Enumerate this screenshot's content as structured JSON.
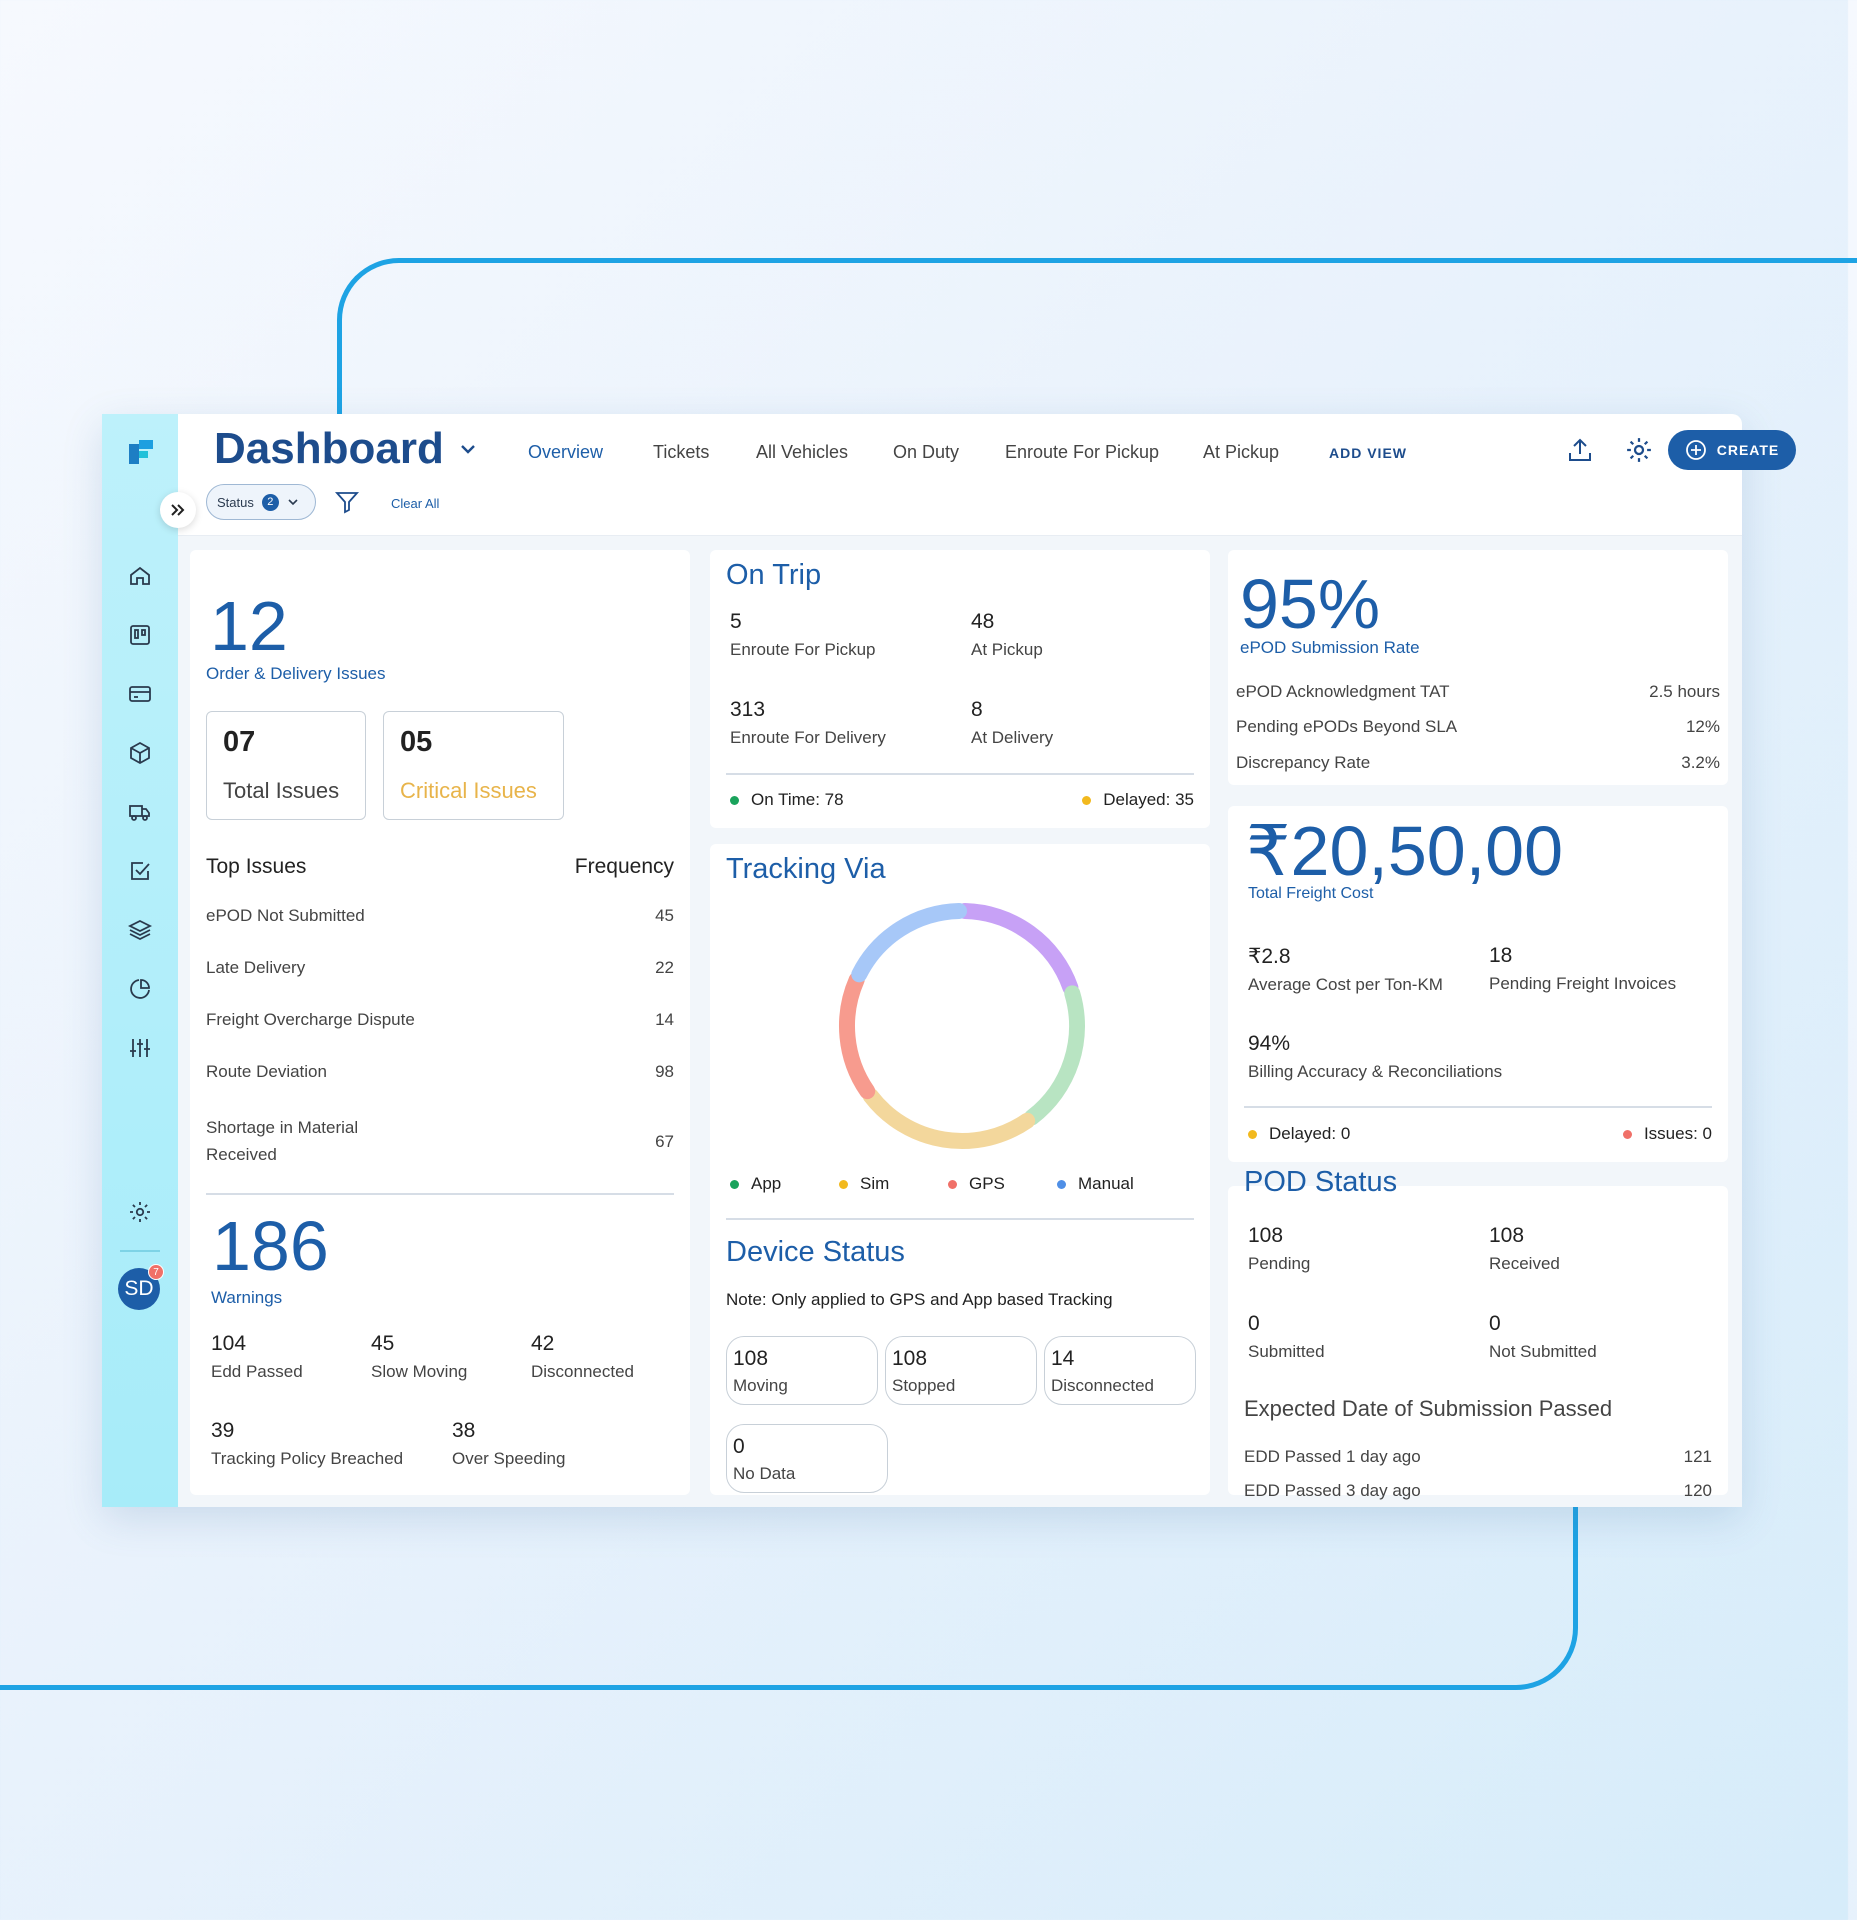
{
  "header": {
    "title": "Dashboard",
    "tabs": [
      "Overview",
      "Tickets",
      "All Vehicles",
      "On Duty",
      "Enroute For Pickup",
      "At Pickup"
    ],
    "add_view": "ADD VIEW",
    "create_label": "CREATE",
    "filter_status": "Status",
    "filter_count": "2",
    "clear_all": "Clear All"
  },
  "user": {
    "initials": "SD",
    "badge": "7"
  },
  "issues": {
    "count": "12",
    "label": "Order & Delivery Issues",
    "total_value": "07",
    "total_label": "Total Issues",
    "critical_value": "05",
    "critical_label": "Critical Issues",
    "top_header": "Top Issues",
    "freq_header": "Frequency",
    "top": [
      {
        "name": "ePOD Not Submitted",
        "freq": "45"
      },
      {
        "name": "Late Delivery",
        "freq": "22"
      },
      {
        "name": "Freight Overcharge Dispute",
        "freq": "14"
      },
      {
        "name": "Route Deviation",
        "freq": "98"
      },
      {
        "name": "Shortage in Material Received",
        "freq": "67"
      }
    ]
  },
  "warnings": {
    "count": "186",
    "label": "Warnings",
    "items": [
      {
        "value": "104",
        "label": "Edd Passed"
      },
      {
        "value": "45",
        "label": "Slow Moving"
      },
      {
        "value": "42",
        "label": "Disconnected"
      },
      {
        "value": "39",
        "label": "Tracking Policy Breached"
      },
      {
        "value": "38",
        "label": "Over Speeding"
      }
    ]
  },
  "on_trip": {
    "title": "On Trip",
    "stats": [
      {
        "value": "5",
        "label": "Enroute For Pickup"
      },
      {
        "value": "48",
        "label": "At Pickup"
      },
      {
        "value": "313",
        "label": "Enroute For Delivery"
      },
      {
        "value": "8",
        "label": "At Delivery"
      }
    ],
    "on_time": "On Time: 78",
    "delayed": "Delayed: 35"
  },
  "tracking": {
    "title": "Tracking Via",
    "legend": [
      {
        "name": "App",
        "color": "#1aa35c"
      },
      {
        "name": "Sim",
        "color": "#f2b91e"
      },
      {
        "name": "GPS",
        "color": "#f07068"
      },
      {
        "name": "Manual",
        "color": "#4f8fe6"
      }
    ],
    "ring_colors": [
      "#c7a1f6",
      "#b8e4c2",
      "#f3d79c",
      "#f79b8e",
      "#a7c8f8"
    ],
    "ring_shares": [
      0.2,
      0.2,
      0.25,
      0.17,
      0.18
    ]
  },
  "device": {
    "title": "Device Status",
    "note": "Note: Only applied to GPS and App based Tracking",
    "items": [
      {
        "value": "108",
        "label": "Moving"
      },
      {
        "value": "108",
        "label": "Stopped"
      },
      {
        "value": "14",
        "label": "Disconnected"
      },
      {
        "value": "0",
        "label": "No Data"
      }
    ]
  },
  "epod": {
    "rate": "95%",
    "rate_label": "ePOD Submission Rate",
    "rows": [
      {
        "label": "ePOD Acknowledgment TAT",
        "value": "2.5 hours"
      },
      {
        "label": "Pending ePODs Beyond SLA",
        "value": "12%"
      },
      {
        "label": "Discrepancy Rate",
        "value": "3.2%"
      }
    ]
  },
  "freight": {
    "total": "₹20,50,00",
    "total_label": "Total Freight Cost",
    "stats": [
      {
        "value": "₹2.8",
        "label": "Average Cost per Ton-KM"
      },
      {
        "value": "18",
        "label": "Pending Freight Invoices"
      },
      {
        "value": "94%",
        "label": "Billing Accuracy & Reconciliations"
      }
    ],
    "delayed": "Delayed: 0",
    "issues": "Issues: 0"
  },
  "pod": {
    "title": "POD Status",
    "stats": [
      {
        "value": "108",
        "label": "Pending"
      },
      {
        "value": "108",
        "label": "Received"
      },
      {
        "value": "0",
        "label": "Submitted"
      },
      {
        "value": "0",
        "label": "Not Submitted"
      }
    ],
    "edd_title": "Expected Date of Submission Passed",
    "edd_rows": [
      {
        "label": "EDD Passed 1 day ago",
        "value": "121"
      },
      {
        "label": "EDD Passed 3 day ago",
        "value": "120"
      }
    ]
  },
  "colors": {
    "accent": "#1d5ea8",
    "critical": "#e8b44a",
    "rail": "#a7ecf9"
  }
}
